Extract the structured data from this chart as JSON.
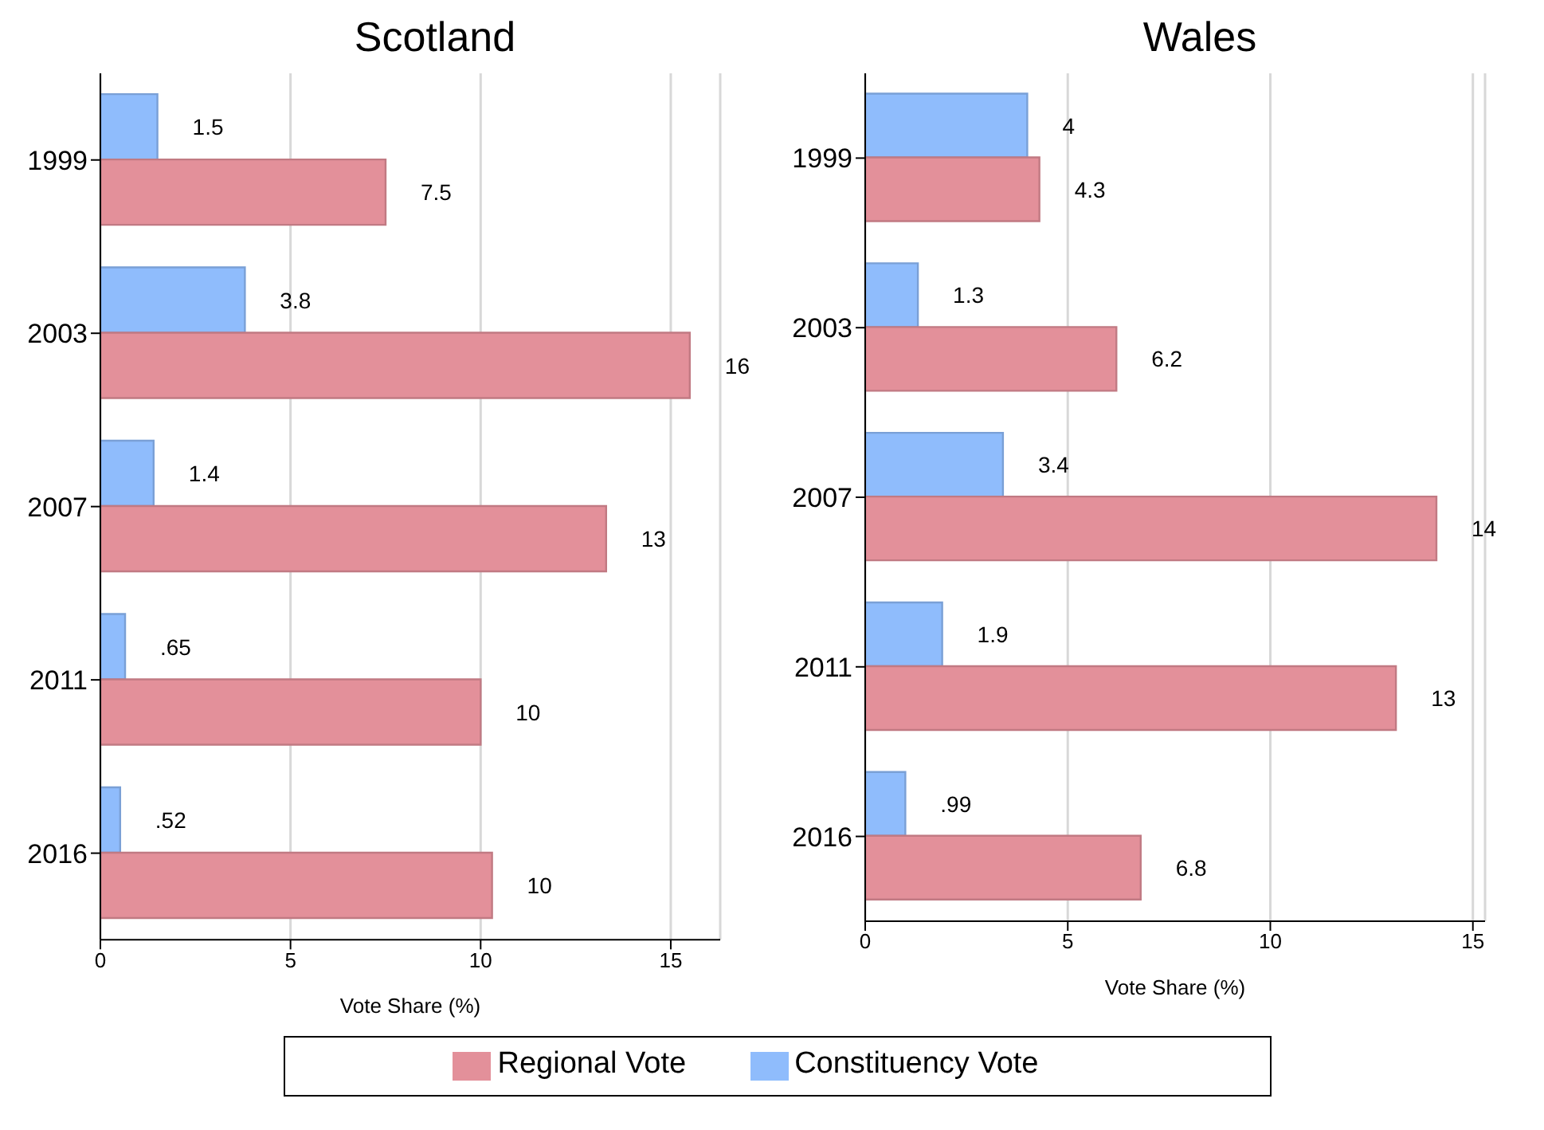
{
  "chart_data": [
    {
      "type": "bar",
      "orientation": "horizontal",
      "title": "Scotland",
      "xlabel": "Vote Share (%)",
      "categories": [
        "1999",
        "2003",
        "2007",
        "2011",
        "2016"
      ],
      "xlim": [
        0,
        16.3
      ],
      "xticks": [
        0,
        5,
        10,
        15
      ],
      "grid": "x",
      "legend": "bottom",
      "series": [
        {
          "name": "Regional Vote",
          "color": "#e3909a",
          "values": [
            7.5,
            15.5,
            13.3,
            10,
            10.3
          ],
          "value_labels": [
            "7.5",
            "16",
            "13",
            "10",
            "10"
          ]
        },
        {
          "name": "Constituency Vote",
          "color": "#8fbcfc",
          "values": [
            1.5,
            3.8,
            1.4,
            0.65,
            0.52
          ],
          "value_labels": [
            "1.5",
            "3.8",
            "1.4",
            ".65",
            ".52"
          ]
        }
      ]
    },
    {
      "type": "bar",
      "orientation": "horizontal",
      "title": "Wales",
      "xlabel": "Vote Share (%)",
      "categories": [
        "1999",
        "2003",
        "2007",
        "2011",
        "2016"
      ],
      "xlim": [
        0,
        15.3
      ],
      "xticks": [
        0,
        5,
        10,
        15
      ],
      "grid": "x",
      "series": [
        {
          "color": "#e3909a",
          "values": [
            4.3,
            6.2,
            14.1,
            13.1,
            6.8
          ],
          "value_labels": [
            "4.3",
            "6.2",
            "14",
            "13",
            "6.8"
          ]
        },
        {
          "color": "#8fbcfc",
          "values": [
            4,
            1.3,
            3.4,
            1.9,
            0.99
          ],
          "value_labels": [
            "4",
            "1.3",
            "3.4",
            "1.9",
            ".99"
          ]
        }
      ]
    }
  ]
}
